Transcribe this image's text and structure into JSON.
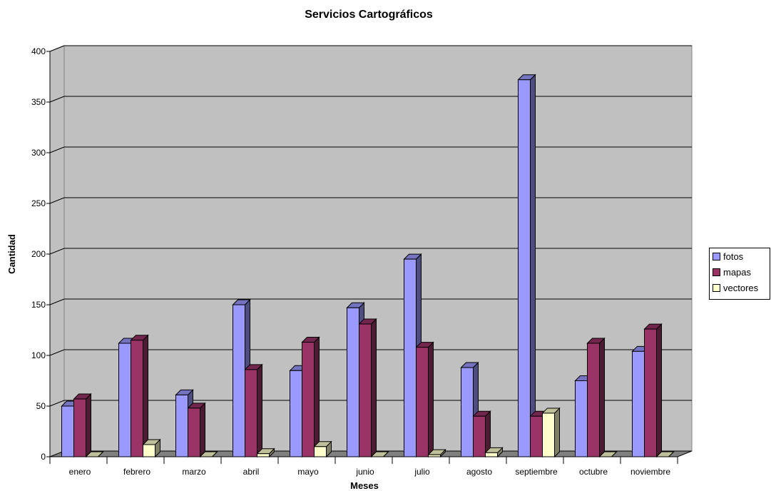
{
  "chart_data": {
    "type": "bar",
    "title": "Servicios Cartográficos",
    "xlabel": "Meses",
    "ylabel": "Cantidad",
    "ylim": [
      0,
      400
    ],
    "yticks": [
      0,
      50,
      100,
      150,
      200,
      250,
      300,
      350,
      400
    ],
    "grid": true,
    "legend_position": "right",
    "categories": [
      "enero",
      "febrero",
      "marzo",
      "abril",
      "mayo",
      "junio",
      "julio",
      "agosto",
      "septiembre",
      "octubre",
      "noviembre"
    ],
    "series": [
      {
        "name": "fotos",
        "color": "#9999ff",
        "values": [
          50,
          112,
          61,
          150,
          85,
          147,
          195,
          88,
          372,
          75,
          104
        ]
      },
      {
        "name": "mapas",
        "color": "#993366",
        "values": [
          57,
          115,
          48,
          86,
          113,
          131,
          108,
          40,
          40,
          112,
          126
        ]
      },
      {
        "name": "vectores",
        "color": "#ffffcc",
        "values": [
          0,
          12,
          0,
          3,
          10,
          0,
          2,
          4,
          43,
          0,
          0
        ]
      }
    ],
    "colors": {
      "plot_background": "#c0c0c0",
      "floor": "#808080"
    }
  }
}
